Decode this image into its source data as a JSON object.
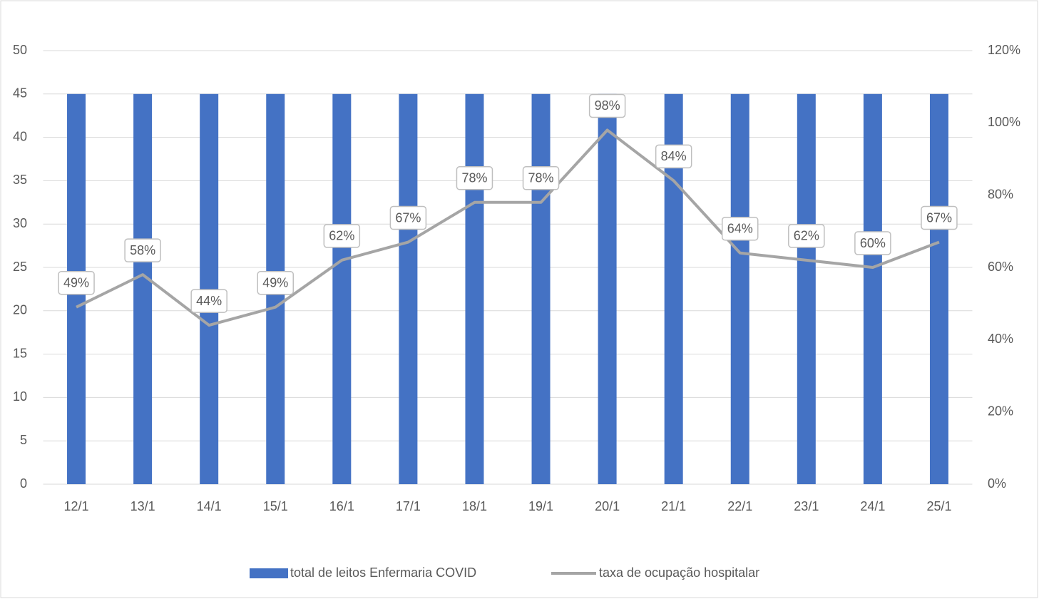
{
  "chart_data": {
    "type": "bar_line",
    "categories": [
      "12/1",
      "13/1",
      "14/1",
      "15/1",
      "16/1",
      "17/1",
      "18/1",
      "19/1",
      "20/1",
      "21/1",
      "22/1",
      "23/1",
      "24/1",
      "25/1"
    ],
    "series": [
      {
        "name": "total de leitos Enfermaria COVID",
        "type": "bar",
        "color": "#4472c4",
        "values": [
          45,
          45,
          45,
          45,
          45,
          45,
          45,
          45,
          45,
          45,
          45,
          45,
          45,
          45
        ]
      },
      {
        "name": "taxa de ocupação hospitalar",
        "type": "line",
        "axis": "y2",
        "color": "#a5a5a5",
        "values": [
          49,
          58,
          44,
          49,
          62,
          67,
          78,
          78,
          98,
          84,
          64,
          62,
          60,
          67
        ],
        "value_labels": [
          "49%",
          "58%",
          "44%",
          "49%",
          "62%",
          "67%",
          "78%",
          "78%",
          "98%",
          "84%",
          "64%",
          "62%",
          "60%",
          "67%"
        ]
      }
    ],
    "ylim": [
      0,
      50
    ],
    "yticks": [
      0,
      5,
      10,
      15,
      20,
      25,
      30,
      35,
      40,
      45,
      50
    ],
    "y2lim": [
      0,
      120
    ],
    "y2ticks": [
      {
        "value": 0,
        "label": "0%"
      },
      {
        "value": 20,
        "label": "20%"
      },
      {
        "value": 40,
        "label": "40%"
      },
      {
        "value": 60,
        "label": "60%"
      },
      {
        "value": 80,
        "label": "80%"
      },
      {
        "value": 100,
        "label": "100%"
      },
      {
        "value": 120,
        "label": "120%"
      }
    ],
    "grid": true,
    "legend": "bottom"
  }
}
